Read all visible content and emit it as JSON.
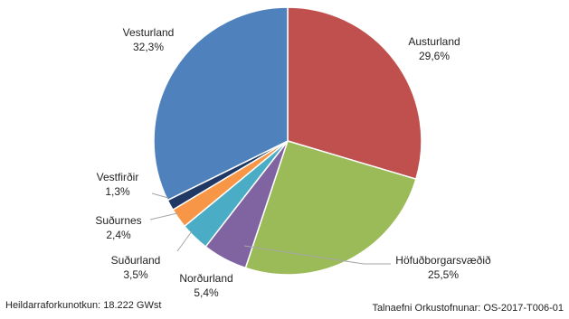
{
  "chart_data": {
    "type": "pie",
    "title": "",
    "slices": [
      {
        "name": "Austurland",
        "value_label": "29,6%",
        "value": 29.6,
        "color": "#c0504d"
      },
      {
        "name": "Höfuðborgarsvæðið",
        "value_label": "25,5%",
        "value": 25.5,
        "color": "#9bbb59"
      },
      {
        "name": "Norðurland",
        "value_label": "5,4%",
        "value": 5.4,
        "color": "#8064a2"
      },
      {
        "name": "Suðurland",
        "value_label": "3,5%",
        "value": 3.5,
        "color": "#4bacc6"
      },
      {
        "name": "Suðurnes",
        "value_label": "2,4%",
        "value": 2.4,
        "color": "#f79646"
      },
      {
        "name": "Vestfirðir",
        "value_label": "1,3%",
        "value": 1.3,
        "color": "#1f3864"
      },
      {
        "name": "Vesturland",
        "value_label": "32,3%",
        "value": 32.3,
        "color": "#4f81bd"
      }
    ]
  },
  "footer": {
    "left": "Heildarraforkunotkun: 18.222 GWst",
    "right": "Talnaefni Orkustofnunar: OS-2017-T006-01"
  }
}
